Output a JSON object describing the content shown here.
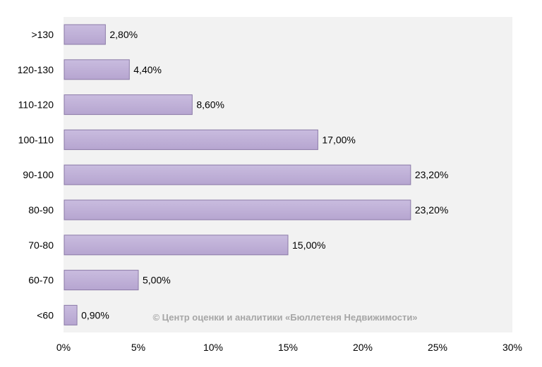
{
  "chart_data": {
    "type": "bar",
    "orientation": "horizontal",
    "categories": [
      ">130",
      "120-130",
      "110-120",
      "100-110",
      "90-100",
      "80-90",
      "70-80",
      "60-70",
      "<60"
    ],
    "values": [
      2.8,
      4.4,
      8.6,
      17.0,
      23.2,
      23.2,
      15.0,
      5.0,
      0.9
    ],
    "value_labels": [
      "2,80%",
      "4,40%",
      "8,60%",
      "17,00%",
      "23,20%",
      "23,20%",
      "15,00%",
      "5,00%",
      "0,90%"
    ],
    "x_ticks": [
      0,
      5,
      10,
      15,
      20,
      25,
      30
    ],
    "x_tick_labels": [
      "0%",
      "5%",
      "10%",
      "15%",
      "20%",
      "25%",
      "30%"
    ],
    "xlim": [
      0,
      30
    ],
    "title": "",
    "xlabel": "",
    "ylabel": "",
    "grid": false,
    "legend": "none",
    "bar_color": "#b6a5d0",
    "bar_edge_color": "#8c7ba8",
    "plot_background": "#f2f2f2",
    "annotation": "© Центр оценки и аналитики «Бюллетеня Недвижимости»"
  }
}
